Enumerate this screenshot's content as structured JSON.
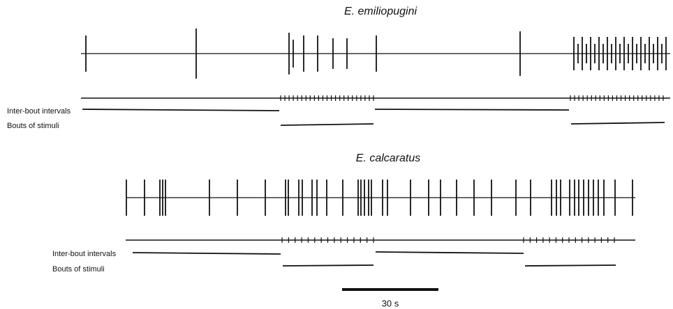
{
  "panels": [
    {
      "title": "E. emiliopugini",
      "labels": [
        "Inter-bout intervals",
        "Bouts of stimuli"
      ]
    },
    {
      "title": "E. calcaratus",
      "labels": [
        "Inter-bout intervals",
        "Bouts of stimuli"
      ]
    }
  ],
  "scale_bar": {
    "label": "30 s"
  }
}
